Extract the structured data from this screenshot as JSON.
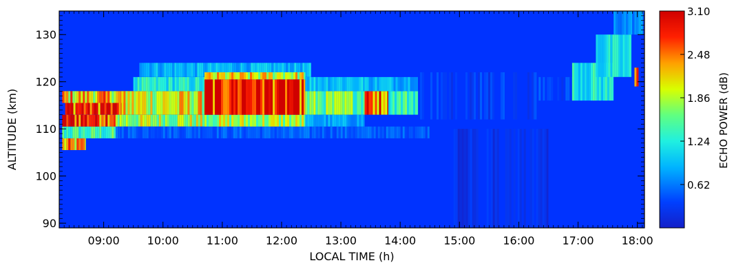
{
  "chart_data": {
    "type": "heatmap",
    "title": "",
    "xlabel": "LOCAL TIME (h)",
    "ylabel": "ALTITUDE (km)",
    "xlim": [
      8.25,
      18.12
    ],
    "ylim": [
      89,
      135
    ],
    "xticks": [
      9,
      10,
      11,
      12,
      13,
      14,
      15,
      16,
      17,
      18
    ],
    "xtick_labels": [
      "09:00",
      "10:00",
      "11:00",
      "12:00",
      "13:00",
      "14:00",
      "15:00",
      "16:00",
      "17:00",
      "18:00"
    ],
    "yticks": [
      90,
      100,
      110,
      120,
      130
    ],
    "ytick_labels": [
      "90",
      "100",
      "110",
      "120",
      "130"
    ],
    "colorbar": {
      "label": "ECHO POWER (dB)",
      "range": [
        0,
        3.1
      ],
      "ticks": [
        0.62,
        1.24,
        1.86,
        2.48,
        3.1
      ],
      "tick_labels": [
        "0.62",
        "1.24",
        "1.86",
        "2.48",
        "3.10"
      ],
      "colors": [
        "#1020c8",
        "#0040ff",
        "#00c8ff",
        "#60ff90",
        "#e8ff00",
        "#ff8000",
        "#ff0000",
        "#c80000"
      ]
    },
    "background_color": "#0033ff",
    "series": [
      {
        "values": [
          [
            8.3,
            8.7,
            105.5,
            108,
            2.2
          ],
          [
            8.3,
            9.3,
            108,
            110.5,
            1.4
          ],
          [
            8.3,
            9.3,
            110.5,
            113,
            2.9
          ],
          [
            8.35,
            9.35,
            113,
            115.5,
            2.8
          ],
          [
            8.3,
            9.5,
            115.5,
            118,
            2.2
          ],
          [
            9.2,
            10.7,
            110.5,
            113,
            1.8
          ],
          [
            9.3,
            10.7,
            113,
            118,
            2.0
          ],
          [
            9.5,
            11.0,
            118,
            121,
            1.2
          ],
          [
            9.6,
            12.5,
            121,
            124,
            0.9
          ],
          [
            9.2,
            14.5,
            108,
            110.5,
            0.5
          ],
          [
            10.7,
            12.4,
            110.5,
            113,
            1.8
          ],
          [
            10.7,
            12.4,
            113,
            120.5,
            2.95
          ],
          [
            10.7,
            12.4,
            120.5,
            122,
            2.0
          ],
          [
            12.4,
            13.4,
            110.5,
            113,
            0.8
          ],
          [
            12.4,
            13.4,
            113,
            118,
            1.6
          ],
          [
            12.4,
            13.4,
            118,
            121,
            1.0
          ],
          [
            13.4,
            13.8,
            113,
            118,
            2.6
          ],
          [
            13.8,
            14.3,
            113,
            118,
            1.4
          ],
          [
            13.4,
            14.3,
            118,
            121,
            0.9
          ],
          [
            14.3,
            16.3,
            112,
            122,
            0.35
          ],
          [
            14.9,
            16.5,
            89,
            110,
            0.22
          ],
          [
            16.3,
            17.2,
            116,
            121,
            0.4
          ],
          [
            16.9,
            17.6,
            116,
            124,
            1.2
          ],
          [
            17.3,
            17.9,
            121,
            130,
            1.1
          ],
          [
            17.6,
            18.1,
            130,
            135,
            0.7
          ],
          [
            17.95,
            18.02,
            119,
            123,
            3.0
          ]
        ]
      }
    ]
  }
}
